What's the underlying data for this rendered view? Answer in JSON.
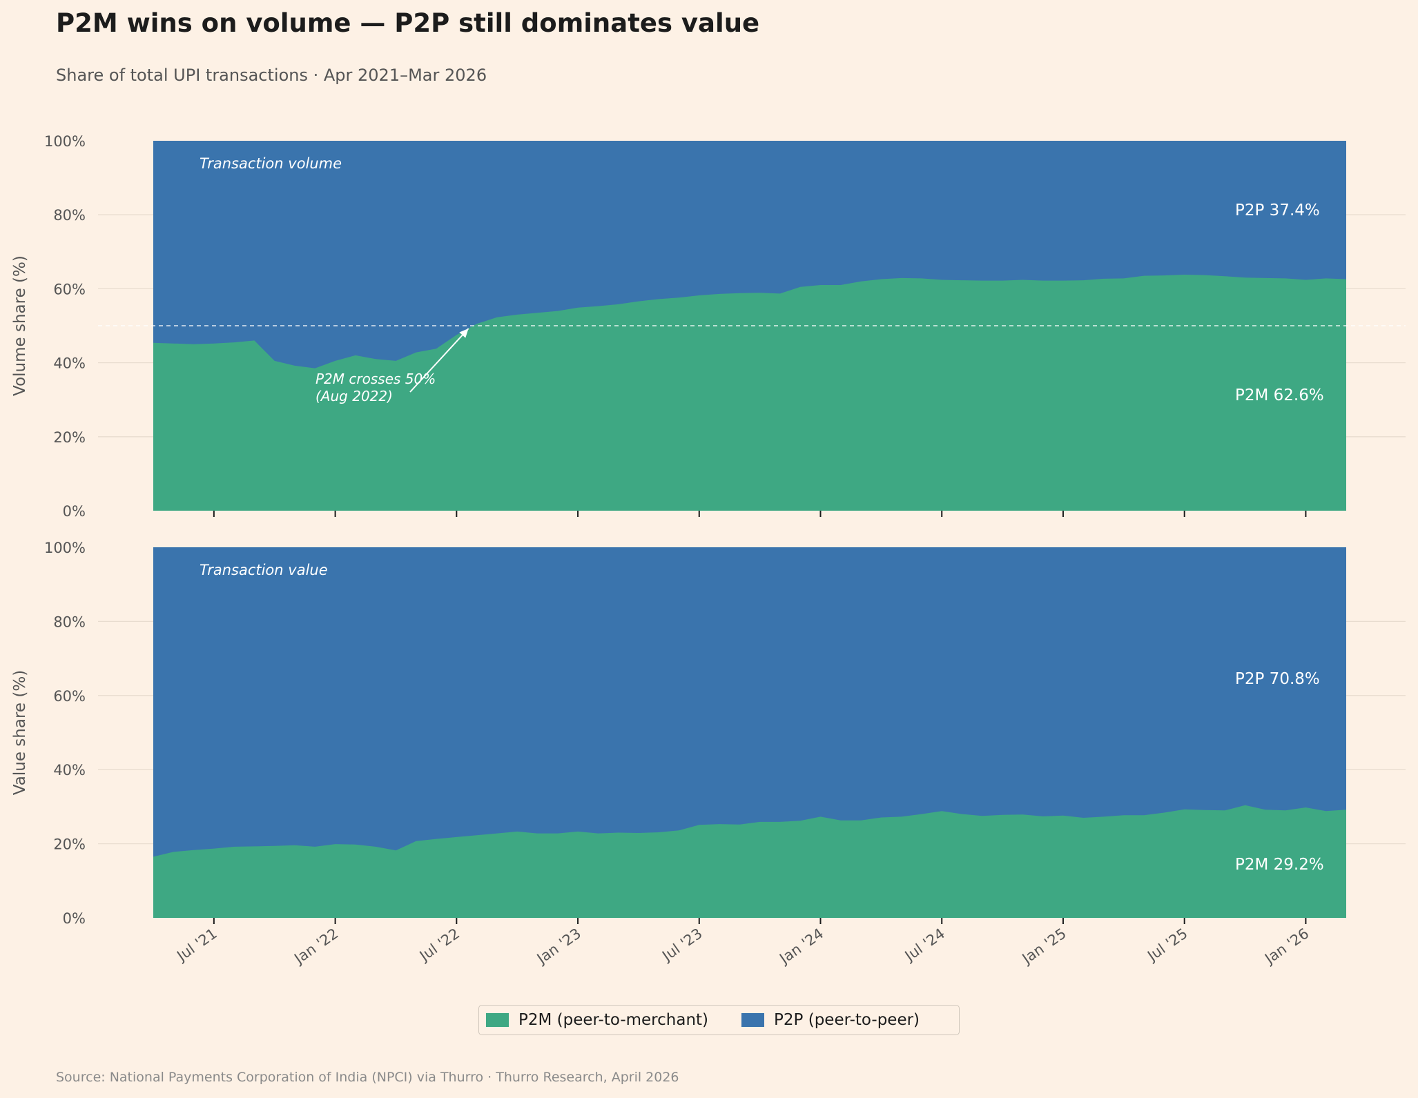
{
  "title": "P2M wins on volume — P2P still dominates value",
  "subtitle": "Share of total UPI transactions · Apr 2021–Mar 2026",
  "source": "Source: National Payments Corporation of India (NPCI) via Thurro · Thurro Research, April 2026",
  "colors": {
    "p2m": "#3ea883",
    "p2p": "#3a74ad",
    "background": "#fdf1e5",
    "grid": "#e8dccf"
  },
  "legend": {
    "p2m_label": "P2M (peer-to-merchant)",
    "p2p_label": "P2P (peer-to-peer)"
  },
  "chart_data": {
    "type": "area",
    "stacked": true,
    "x_start": "Apr 2021",
    "x_end": "Mar 2026",
    "x_tick_labels": [
      "Jul '21",
      "Jan '22",
      "Jul '22",
      "Jan '23",
      "Jul '23",
      "Jan '24",
      "Jul '24",
      "Jan '25",
      "Jul '25",
      "Jan '26"
    ],
    "x_tick_month_index": [
      3,
      9,
      15,
      21,
      27,
      33,
      39,
      45,
      51,
      57
    ],
    "y_tick_labels": [
      "0%",
      "20%",
      "40%",
      "60%",
      "80%",
      "100%"
    ],
    "y_tick_values": [
      0,
      20,
      40,
      60,
      80,
      100
    ],
    "ylim": [
      0,
      100
    ],
    "legend_position": "bottom-center",
    "panels": [
      {
        "label": "Transaction volume",
        "ylabel": "Volume share (%)",
        "reference_line": 50,
        "annotation": {
          "line1": "P2M crosses 50%",
          "line2": "(Aug 2022)",
          "target_month_index": 16,
          "target_value": 50
        },
        "end_label_p2p": "P2P  37.4%",
        "end_label_p2m": "P2M  62.6%",
        "series": [
          {
            "name": "P2M",
            "values": [
              45.4,
              45.2,
              45.0,
              45.2,
              45.5,
              46.0,
              40.5,
              39.2,
              38.5,
              40.5,
              42.0,
              41.0,
              40.5,
              42.8,
              43.8,
              47.5,
              50.5,
              52.3,
              53.0,
              53.5,
              54.0,
              54.9,
              55.3,
              55.8,
              56.6,
              57.2,
              57.6,
              58.2,
              58.6,
              58.8,
              58.9,
              58.7,
              60.5,
              61.0,
              61.0,
              62.0,
              62.6,
              62.9,
              62.8,
              62.4,
              62.3,
              62.2,
              62.2,
              62.4,
              62.2,
              62.2,
              62.3,
              62.7,
              62.8,
              63.5,
              63.6,
              63.8,
              63.7,
              63.4,
              63.0,
              62.9,
              62.8,
              62.4,
              62.8,
              62.6
            ]
          },
          {
            "name": "P2P",
            "values": [
              54.6,
              54.8,
              55.0,
              54.8,
              54.5,
              54.0,
              59.5,
              60.8,
              61.5,
              59.5,
              58.0,
              59.0,
              59.5,
              57.2,
              56.2,
              52.5,
              49.5,
              47.7,
              47.0,
              46.5,
              46.0,
              45.1,
              44.7,
              44.2,
              43.4,
              42.8,
              42.4,
              41.8,
              41.4,
              41.2,
              41.1,
              41.3,
              39.5,
              39.0,
              39.0,
              38.0,
              37.4,
              37.1,
              37.2,
              37.6,
              37.7,
              37.8,
              37.8,
              37.6,
              37.8,
              37.8,
              37.7,
              37.3,
              37.2,
              36.5,
              36.4,
              36.2,
              36.3,
              36.6,
              37.0,
              37.1,
              37.2,
              37.6,
              37.2,
              37.4
            ]
          }
        ]
      },
      {
        "label": "Transaction value",
        "ylabel": "Value share (%)",
        "end_label_p2p": "P2P  70.8%",
        "end_label_p2m": "P2M  29.2%",
        "series": [
          {
            "name": "P2M",
            "values": [
              16.5,
              17.8,
              18.3,
              18.7,
              19.2,
              19.3,
              19.4,
              19.6,
              19.2,
              19.9,
              19.8,
              19.2,
              18.2,
              20.7,
              21.3,
              21.8,
              22.3,
              22.8,
              23.3,
              22.8,
              22.8,
              23.3,
              22.8,
              23.0,
              22.9,
              23.1,
              23.6,
              25.1,
              25.3,
              25.2,
              25.9,
              25.9,
              26.2,
              27.3,
              26.3,
              26.3,
              27.1,
              27.3,
              28.0,
              28.8,
              28.0,
              27.5,
              27.8,
              27.9,
              27.4,
              27.6,
              27.0,
              27.3,
              27.7,
              27.7,
              28.4,
              29.3,
              29.1,
              29.0,
              30.4,
              29.2,
              29.0,
              29.8,
              28.8,
              29.2
            ]
          },
          {
            "name": "P2P",
            "values": [
              83.5,
              82.2,
              81.7,
              81.3,
              80.8,
              80.7,
              80.6,
              80.4,
              80.8,
              80.1,
              80.2,
              80.8,
              81.8,
              79.3,
              78.7,
              78.2,
              77.7,
              77.2,
              76.7,
              77.2,
              77.2,
              76.7,
              77.2,
              77.0,
              77.1,
              76.9,
              76.4,
              74.9,
              74.7,
              74.8,
              74.1,
              74.1,
              73.8,
              72.7,
              73.7,
              73.7,
              72.9,
              72.7,
              72.0,
              71.2,
              72.0,
              72.5,
              72.2,
              72.1,
              72.6,
              72.4,
              73.0,
              72.7,
              72.3,
              72.3,
              71.6,
              70.7,
              70.9,
              71.0,
              69.6,
              70.8,
              71.0,
              70.2,
              71.2,
              70.8
            ]
          }
        ]
      }
    ]
  }
}
